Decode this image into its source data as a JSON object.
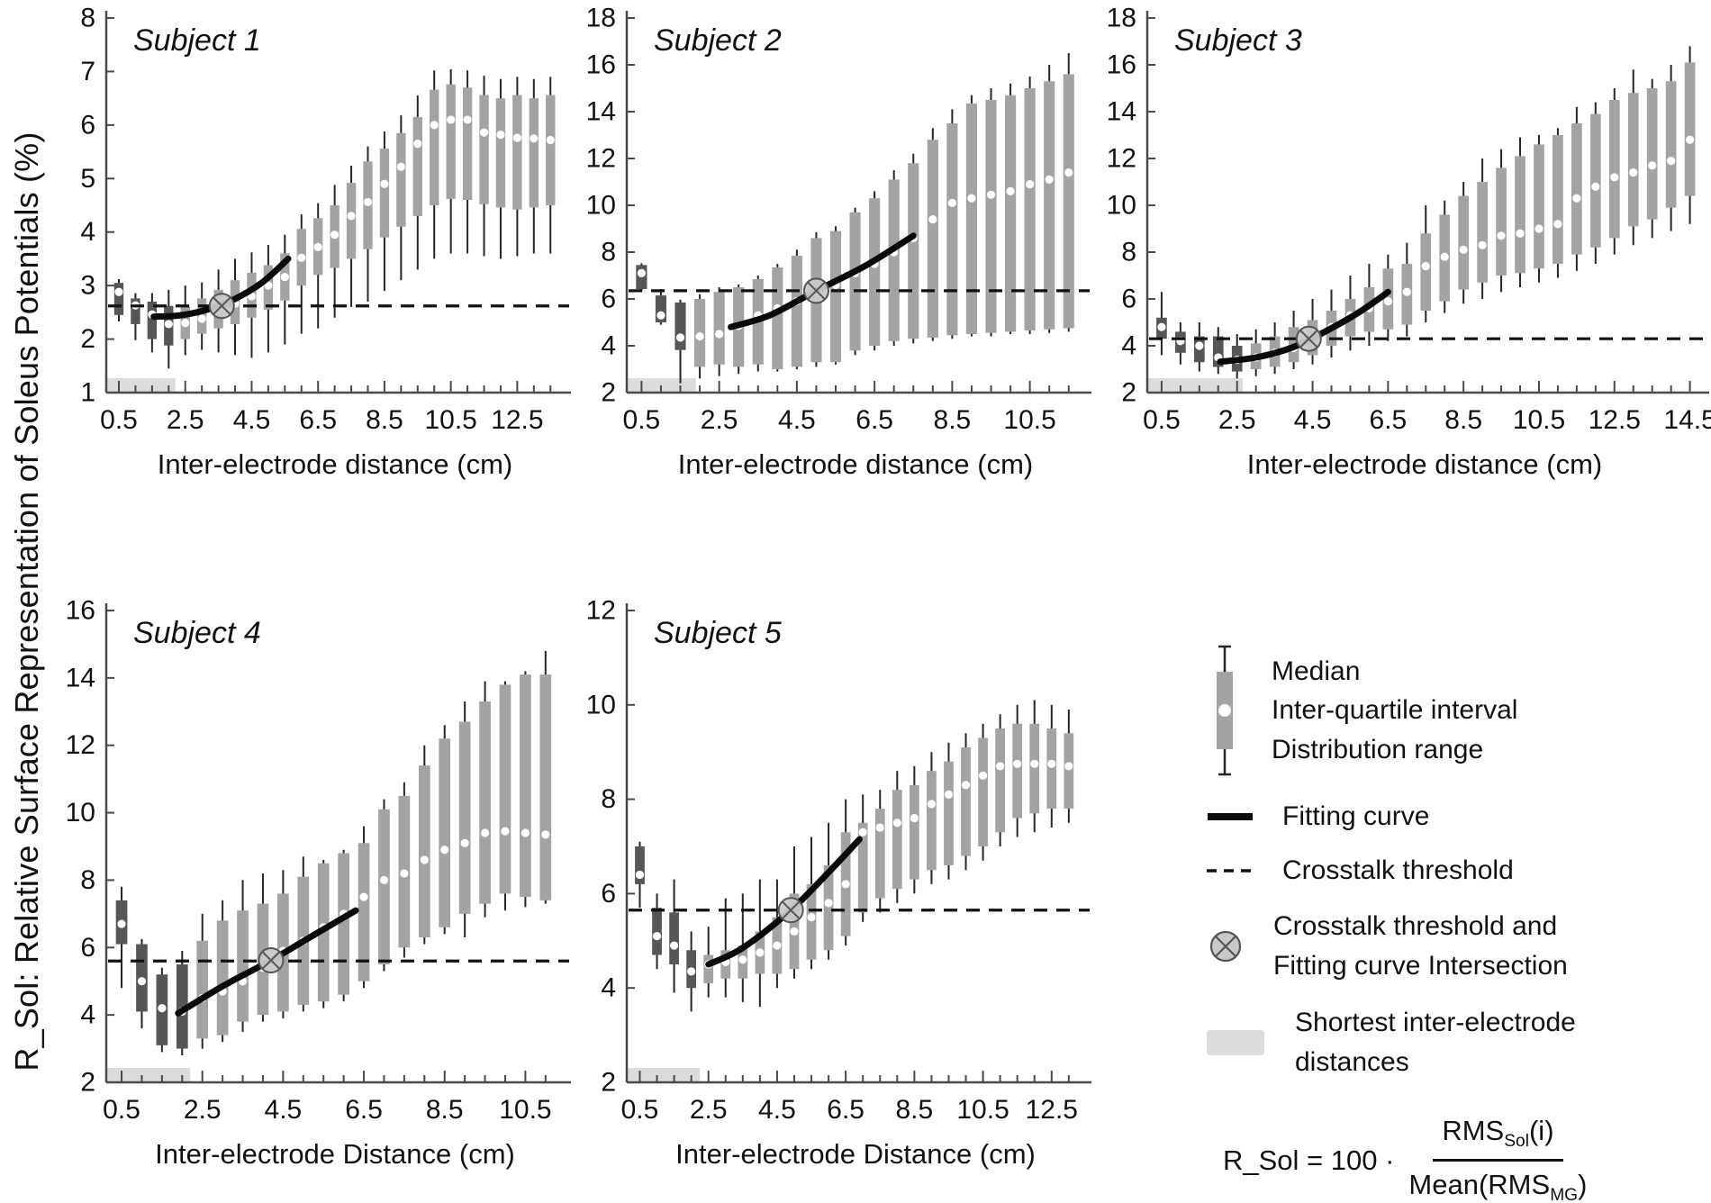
{
  "figure": {
    "y_axis_label": "R_Sol: Relative Surface Representation of Soleus Potentials (%)"
  },
  "colors": {
    "box_light": "#a3a3a3",
    "box_dark": "#565656",
    "whisker": "#262626",
    "median_dot": "#ffffff",
    "fit_curve": "#0a0a0a",
    "threshold": "#111111",
    "intersection_fill": "#c9c9c9",
    "intersection_stroke": "#555555",
    "band": "#dcdcdc",
    "axis": "#4a4a4a",
    "text": "#111111"
  },
  "legend": {
    "box_labels": [
      "Median",
      "Inter-quartile interval",
      "Distribution range"
    ],
    "fitting_curve_label": "Fitting curve",
    "crosstalk_threshold_label": "Crosstalk threshold",
    "intersection_label_line1": "Crosstalk threshold and",
    "intersection_label_line2": "Fitting curve Intersection",
    "shortest_label_line1": "Shortest inter-electrode",
    "shortest_label_line2": "distances",
    "formula": {
      "lhs": "R_Sol = 100 ·",
      "num_base": "RMS",
      "num_sub": "Sol",
      "num_arg": "(i)",
      "den_prefix": "Mean(RMS",
      "den_sub": "MG",
      "den_suffix": ")"
    }
  },
  "chart_data": [
    {
      "type": "box",
      "title": "Subject 1",
      "xlabel": "Inter-electrode distance (cm)",
      "ylim": [
        1,
        8
      ],
      "ytick_step": 1,
      "xticks": [
        0.5,
        2.5,
        4.5,
        6.5,
        8.5,
        10.5,
        12.5
      ],
      "xdomain": [
        0.12,
        13.9
      ],
      "threshold": 2.62,
      "intersection": [
        3.6,
        2.62
      ],
      "fit_curve": [
        [
          1.55,
          2.42
        ],
        [
          2.3,
          2.44
        ],
        [
          3.1,
          2.54
        ],
        [
          3.9,
          2.72
        ],
        [
          4.8,
          3.05
        ],
        [
          5.6,
          3.5
        ]
      ],
      "shortest_band_end": 2.2,
      "dark_count": 4,
      "box_format": [
        "x",
        "low",
        "q1",
        "median",
        "q3",
        "high"
      ],
      "boxes": [
        [
          0.5,
          2.33,
          2.45,
          2.88,
          3.05,
          3.12
        ],
        [
          1.0,
          1.98,
          2.28,
          2.63,
          2.76,
          2.86
        ],
        [
          1.5,
          1.75,
          2.0,
          2.46,
          2.7,
          2.86
        ],
        [
          2.0,
          1.45,
          1.88,
          2.28,
          2.62,
          2.92
        ],
        [
          2.5,
          1.7,
          2.0,
          2.3,
          2.62,
          3.0
        ],
        [
          3.0,
          1.8,
          2.1,
          2.38,
          2.76,
          3.06
        ],
        [
          3.5,
          1.75,
          2.2,
          2.55,
          2.92,
          3.3
        ],
        [
          4.0,
          1.7,
          2.28,
          2.66,
          3.1,
          3.5
        ],
        [
          4.5,
          1.65,
          2.4,
          2.8,
          3.24,
          3.62
        ],
        [
          5.0,
          1.75,
          2.55,
          3.0,
          3.38,
          3.76
        ],
        [
          5.5,
          1.9,
          2.72,
          3.16,
          3.6,
          3.95
        ],
        [
          6.0,
          2.1,
          3.0,
          3.52,
          4.06,
          4.33
        ],
        [
          6.5,
          2.2,
          3.2,
          3.72,
          4.26,
          4.54
        ],
        [
          7.0,
          2.4,
          3.33,
          3.95,
          4.5,
          4.88
        ],
        [
          7.5,
          2.6,
          3.5,
          4.3,
          4.92,
          5.24
        ],
        [
          8.0,
          2.7,
          3.68,
          4.56,
          5.32,
          5.6
        ],
        [
          8.5,
          2.9,
          3.9,
          4.9,
          5.56,
          5.88
        ],
        [
          9.0,
          3.1,
          4.1,
          5.22,
          5.85,
          6.18
        ],
        [
          9.5,
          3.3,
          4.3,
          5.65,
          6.15,
          6.55
        ],
        [
          10.0,
          3.5,
          4.5,
          6.0,
          6.66,
          7.02
        ],
        [
          10.5,
          3.6,
          4.62,
          6.1,
          6.76,
          7.04
        ],
        [
          11.0,
          3.6,
          4.6,
          6.1,
          6.7,
          7.02
        ],
        [
          11.5,
          3.55,
          4.52,
          5.86,
          6.56,
          6.92
        ],
        [
          12.0,
          3.5,
          4.46,
          5.82,
          6.5,
          6.86
        ],
        [
          12.5,
          3.55,
          4.42,
          5.76,
          6.56,
          6.9
        ],
        [
          13.0,
          3.6,
          4.46,
          5.75,
          6.5,
          6.86
        ],
        [
          13.5,
          3.6,
          4.5,
          5.72,
          6.56,
          6.9
        ]
      ]
    },
    {
      "type": "box",
      "title": "Subject 2",
      "xlabel": "Inter-electrode distance (cm)",
      "ylim": [
        2,
        18
      ],
      "ytick_step": 2,
      "xticks": [
        0.5,
        2.5,
        4.5,
        6.5,
        8.5,
        10.5
      ],
      "xdomain": [
        0.12,
        11.9
      ],
      "threshold": 6.35,
      "intersection": [
        5.0,
        6.35
      ],
      "fit_curve": [
        [
          2.8,
          4.8
        ],
        [
          3.8,
          5.3
        ],
        [
          5.0,
          6.35
        ],
        [
          6.3,
          7.45
        ],
        [
          7.5,
          8.7
        ]
      ],
      "shortest_band_end": 1.9,
      "dark_count": 3,
      "box_format": [
        "x",
        "low",
        "q1",
        "median",
        "q3",
        "high"
      ],
      "boxes": [
        [
          0.5,
          6.33,
          6.42,
          7.1,
          7.45,
          7.52
        ],
        [
          1.0,
          4.9,
          5.0,
          5.3,
          6.15,
          6.42
        ],
        [
          1.5,
          2.4,
          3.82,
          4.35,
          5.85,
          5.97
        ],
        [
          2.0,
          2.6,
          3.1,
          4.4,
          6.0,
          6.2
        ],
        [
          2.5,
          2.7,
          3.2,
          4.5,
          6.3,
          6.5
        ],
        [
          3.0,
          2.8,
          3.1,
          4.85,
          6.5,
          6.62
        ],
        [
          3.5,
          2.9,
          3.2,
          5.3,
          6.85,
          7.0
        ],
        [
          4.0,
          2.9,
          3.0,
          5.6,
          7.35,
          7.5
        ],
        [
          4.5,
          3.0,
          3.1,
          5.9,
          7.85,
          8.1
        ],
        [
          5.0,
          3.1,
          3.3,
          6.3,
          8.6,
          8.85
        ],
        [
          5.5,
          3.2,
          3.3,
          6.6,
          8.9,
          9.1
        ],
        [
          6.0,
          3.6,
          3.8,
          7.1,
          9.7,
          9.9
        ],
        [
          6.5,
          3.8,
          4.0,
          7.5,
          10.3,
          10.6
        ],
        [
          7.0,
          4.0,
          4.2,
          8.0,
          11.1,
          11.5
        ],
        [
          7.5,
          4.1,
          4.3,
          8.6,
          11.8,
          12.2
        ],
        [
          8.0,
          4.2,
          4.35,
          9.4,
          12.8,
          13.3
        ],
        [
          8.5,
          4.3,
          4.45,
          10.1,
          13.5,
          14.1
        ],
        [
          9.0,
          4.4,
          4.5,
          10.3,
          14.35,
          14.7
        ],
        [
          9.5,
          4.4,
          4.55,
          10.45,
          14.5,
          15.0
        ],
        [
          10.0,
          4.5,
          4.6,
          10.6,
          14.7,
          15.2
        ],
        [
          10.5,
          4.5,
          4.65,
          10.9,
          15.0,
          15.5
        ],
        [
          11.0,
          4.55,
          4.7,
          11.1,
          15.3,
          16.0
        ],
        [
          11.5,
          4.6,
          4.75,
          11.4,
          15.6,
          16.5
        ]
      ]
    },
    {
      "type": "box",
      "title": "Subject 3",
      "xlabel": "Inter-electrode distance (cm)",
      "ylim": [
        2,
        18
      ],
      "ytick_step": 2,
      "xticks": [
        0.5,
        2.5,
        4.5,
        6.5,
        8.5,
        10.5,
        12.5,
        14.5
      ],
      "xdomain": [
        0.12,
        14.82
      ],
      "threshold": 4.3,
      "intersection": [
        4.4,
        4.3
      ],
      "fit_curve": [
        [
          2.05,
          3.32
        ],
        [
          3.0,
          3.5
        ],
        [
          4.0,
          3.95
        ],
        [
          5.0,
          4.75
        ],
        [
          5.8,
          5.5
        ],
        [
          6.5,
          6.3
        ]
      ],
      "shortest_band_end": 2.65,
      "dark_count": 5,
      "box_format": [
        "x",
        "low",
        "q1",
        "median",
        "q3",
        "high"
      ],
      "boxes": [
        [
          0.5,
          3.6,
          4.3,
          4.8,
          5.2,
          6.3
        ],
        [
          1.0,
          3.2,
          3.7,
          4.2,
          4.6,
          5.0
        ],
        [
          1.5,
          2.9,
          3.3,
          4.0,
          4.4,
          5.0
        ],
        [
          2.0,
          2.8,
          3.1,
          3.5,
          4.4,
          4.8
        ],
        [
          2.5,
          2.6,
          2.9,
          3.4,
          4.0,
          4.5
        ],
        [
          3.0,
          2.7,
          3.0,
          3.5,
          4.1,
          4.7
        ],
        [
          3.5,
          2.8,
          3.1,
          3.7,
          4.4,
          5.0
        ],
        [
          4.0,
          3.0,
          3.3,
          3.9,
          4.8,
          5.5
        ],
        [
          4.5,
          3.2,
          3.6,
          4.3,
          5.1,
          6.0
        ],
        [
          5.0,
          3.5,
          4.0,
          4.8,
          5.5,
          6.4
        ],
        [
          5.5,
          3.8,
          4.4,
          5.3,
          6.0,
          7.0
        ],
        [
          6.0,
          4.0,
          4.6,
          5.6,
          6.5,
          7.5
        ],
        [
          6.5,
          4.2,
          4.7,
          5.9,
          7.3,
          7.9
        ],
        [
          7.0,
          4.4,
          4.9,
          6.3,
          7.5,
          8.4
        ],
        [
          7.5,
          5.0,
          5.5,
          7.4,
          8.8,
          10.0
        ],
        [
          8.0,
          5.4,
          5.9,
          7.8,
          9.6,
          10.2
        ],
        [
          8.5,
          5.8,
          6.4,
          8.1,
          10.4,
          11.0
        ],
        [
          9.0,
          6.0,
          6.7,
          8.3,
          11.0,
          12.0
        ],
        [
          9.5,
          6.3,
          7.0,
          8.7,
          11.6,
          12.4
        ],
        [
          10.0,
          6.5,
          7.1,
          8.8,
          12.1,
          12.9
        ],
        [
          10.5,
          6.7,
          7.3,
          9.0,
          12.6,
          13.0
        ],
        [
          11.0,
          6.9,
          7.5,
          9.2,
          13.0,
          13.3
        ],
        [
          11.5,
          7.2,
          7.9,
          10.3,
          13.5,
          14.2
        ],
        [
          12.0,
          7.5,
          8.2,
          10.8,
          13.9,
          14.4
        ],
        [
          12.5,
          7.9,
          8.6,
          11.2,
          14.5,
          15.0
        ],
        [
          13.0,
          8.3,
          9.1,
          11.4,
          14.8,
          15.8
        ],
        [
          13.5,
          8.6,
          9.4,
          11.7,
          15.0,
          15.4
        ],
        [
          14.0,
          8.9,
          9.9,
          11.9,
          15.3,
          16.0
        ],
        [
          14.5,
          9.2,
          10.4,
          12.8,
          16.1,
          16.8
        ]
      ]
    },
    {
      "type": "box",
      "title": "Subject 4",
      "xlabel": "Inter-electrode Distance (cm)",
      "ylim": [
        2,
        16
      ],
      "ytick_step": 2,
      "xticks": [
        0.5,
        2.5,
        4.5,
        6.5,
        8.5,
        10.5
      ],
      "xdomain": [
        0.12,
        11.45
      ],
      "threshold": 5.6,
      "intersection": [
        4.2,
        5.62
      ],
      "fit_curve": [
        [
          1.9,
          4.05
        ],
        [
          3.0,
          4.85
        ],
        [
          4.2,
          5.62
        ],
        [
          5.3,
          6.4
        ],
        [
          6.3,
          7.1
        ]
      ],
      "shortest_band_end": 2.2,
      "dark_count": 4,
      "box_format": [
        "x",
        "low",
        "q1",
        "median",
        "q3",
        "high"
      ],
      "boxes": [
        [
          0.5,
          4.8,
          6.1,
          6.7,
          7.4,
          7.8
        ],
        [
          1.0,
          3.6,
          4.1,
          5.0,
          6.1,
          6.25
        ],
        [
          1.5,
          2.9,
          3.1,
          4.2,
          5.2,
          5.4
        ],
        [
          2.0,
          2.8,
          3.0,
          4.1,
          5.5,
          5.9
        ],
        [
          2.5,
          3.0,
          3.3,
          4.5,
          6.2,
          7.0
        ],
        [
          3.0,
          3.2,
          3.4,
          4.7,
          6.8,
          7.4
        ],
        [
          3.5,
          3.5,
          3.8,
          5.0,
          7.1,
          8.0
        ],
        [
          4.0,
          3.8,
          4.0,
          5.4,
          7.3,
          8.2
        ],
        [
          4.5,
          3.9,
          4.1,
          5.9,
          7.6,
          8.3
        ],
        [
          5.0,
          4.1,
          4.3,
          6.2,
          8.1,
          8.7
        ],
        [
          5.5,
          4.2,
          4.4,
          6.6,
          8.5,
          8.6
        ],
        [
          6.0,
          4.4,
          4.6,
          7.0,
          8.8,
          8.9
        ],
        [
          6.5,
          4.8,
          5.0,
          7.5,
          9.1,
          9.6
        ],
        [
          7.0,
          5.3,
          5.5,
          8.0,
          10.1,
          10.4
        ],
        [
          7.5,
          5.7,
          6.0,
          8.2,
          10.5,
          10.9
        ],
        [
          8.0,
          6.1,
          6.3,
          8.6,
          11.4,
          12.0
        ],
        [
          8.5,
          6.4,
          6.6,
          8.9,
          12.2,
          12.6
        ],
        [
          9.0,
          6.3,
          7.0,
          9.1,
          12.7,
          13.3
        ],
        [
          9.5,
          6.9,
          7.3,
          9.4,
          13.3,
          13.9
        ],
        [
          10.0,
          7.1,
          7.6,
          9.45,
          13.8,
          13.9
        ],
        [
          10.5,
          7.2,
          7.5,
          9.4,
          14.1,
          14.2
        ],
        [
          11.0,
          7.3,
          7.4,
          9.35,
          14.1,
          14.8
        ]
      ]
    },
    {
      "type": "box",
      "title": "Subject 5",
      "xlabel": "Inter-electrode Distance (cm)",
      "ylim": [
        2,
        12
      ],
      "ytick_step": 2,
      "xticks": [
        0.5,
        2.5,
        4.5,
        6.5,
        8.5,
        10.5,
        12.5
      ],
      "xdomain": [
        0.12,
        13.45
      ],
      "threshold": 5.65,
      "intersection": [
        4.9,
        5.65
      ],
      "fit_curve": [
        [
          2.5,
          4.5
        ],
        [
          3.5,
          4.85
        ],
        [
          4.9,
          5.65
        ],
        [
          6.0,
          6.45
        ],
        [
          6.9,
          7.15
        ]
      ],
      "shortest_band_end": 2.25,
      "dark_count": 4,
      "box_format": [
        "x",
        "low",
        "q1",
        "median",
        "q3",
        "high"
      ],
      "boxes": [
        [
          0.5,
          5.7,
          6.2,
          6.4,
          7.0,
          7.1
        ],
        [
          1.0,
          4.4,
          4.7,
          5.1,
          5.7,
          6.0
        ],
        [
          1.5,
          3.9,
          4.5,
          4.9,
          5.6,
          6.3
        ],
        [
          2.0,
          3.5,
          4.0,
          4.35,
          4.8,
          5.2
        ],
        [
          2.5,
          3.8,
          4.1,
          4.5,
          4.7,
          5.3
        ],
        [
          3.0,
          3.8,
          4.2,
          4.55,
          4.8,
          5.9
        ],
        [
          3.5,
          3.7,
          4.2,
          4.6,
          4.9,
          6.0
        ],
        [
          4.0,
          3.6,
          4.3,
          4.75,
          5.2,
          6.3
        ],
        [
          4.5,
          4.0,
          4.3,
          4.9,
          5.5,
          6.3
        ],
        [
          5.0,
          4.2,
          4.4,
          5.2,
          6.0,
          7.0
        ],
        [
          5.5,
          4.4,
          4.6,
          5.5,
          6.2,
          7.2
        ],
        [
          6.0,
          4.6,
          4.8,
          5.8,
          6.6,
          7.5
        ],
        [
          6.5,
          4.9,
          5.1,
          6.2,
          7.3,
          8.0
        ],
        [
          7.0,
          5.4,
          5.6,
          7.3,
          7.5,
          8.1
        ],
        [
          7.5,
          5.6,
          5.9,
          7.4,
          7.8,
          8.2
        ],
        [
          8.0,
          5.8,
          6.1,
          7.5,
          8.2,
          8.6
        ],
        [
          8.5,
          6.0,
          6.3,
          7.6,
          8.3,
          8.7
        ],
        [
          9.0,
          6.2,
          6.5,
          7.9,
          8.6,
          9.0
        ],
        [
          9.5,
          6.3,
          6.6,
          8.1,
          8.8,
          9.2
        ],
        [
          10.0,
          6.5,
          6.8,
          8.3,
          9.1,
          9.4
        ],
        [
          10.5,
          6.7,
          7.0,
          8.5,
          9.3,
          9.6
        ],
        [
          11.0,
          7.0,
          7.3,
          8.7,
          9.5,
          9.8
        ],
        [
          11.5,
          7.2,
          7.6,
          8.75,
          9.6,
          10.0
        ],
        [
          12.0,
          7.3,
          7.7,
          8.75,
          9.6,
          10.1
        ],
        [
          12.5,
          7.4,
          7.8,
          8.75,
          9.5,
          10.0
        ],
        [
          13.0,
          7.5,
          7.8,
          8.7,
          9.4,
          9.9
        ]
      ]
    }
  ]
}
